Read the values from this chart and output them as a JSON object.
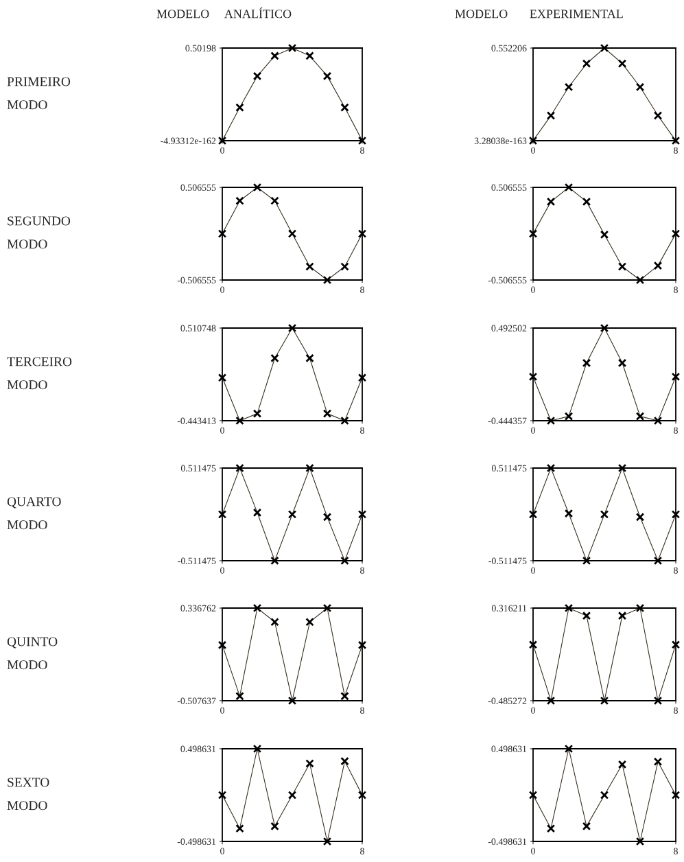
{
  "chart_data": [
    {
      "type": "line",
      "title": "MODELO     ANALÍTICO",
      "ylabel": "PRIMEIRO\nMODO",
      "x": [
        0,
        1,
        2,
        3,
        4,
        5,
        6,
        7,
        8
      ],
      "series": [
        {
          "color": "#3a3020",
          "values": [
            0,
            0.18,
            0.35,
            0.46,
            0.50198,
            0.46,
            0.35,
            0.18,
            0
          ]
        }
      ],
      "xlim": [
        0,
        8
      ],
      "xticks": [
        0,
        8
      ],
      "ylim": [
        -4.93312e-162,
        0.50198
      ],
      "yticks": [
        -4.93312e-162,
        0.50198
      ],
      "marker": "cross",
      "line_style": "solid"
    },
    {
      "type": "line",
      "title": "MODELO       EXPERIMENTAL",
      "x": [
        0,
        1,
        2,
        3,
        4,
        5,
        6,
        7,
        8
      ],
      "series": [
        {
          "color": "#3a3020",
          "values": [
            3.28038e-163,
            0.15,
            0.32,
            0.46,
            0.552206,
            0.46,
            0.32,
            0.15,
            3.28038e-163
          ]
        }
      ],
      "xlim": [
        0,
        8
      ],
      "xticks": [
        0,
        8
      ],
      "ylim": [
        3.28038e-163,
        0.552206
      ],
      "yticks": [
        3.28038e-163,
        0.552206
      ],
      "marker": "cross",
      "line_style": "solid"
    },
    {
      "type": "line",
      "ylabel": "SEGUNDO\nMODO",
      "x": [
        0,
        1,
        2,
        3,
        4,
        5,
        6,
        7,
        8
      ],
      "series": [
        {
          "color": "#3a3020",
          "values": [
            0,
            0.36,
            0.506555,
            0.36,
            0,
            -0.36,
            -0.506555,
            -0.36,
            0
          ]
        }
      ],
      "xlim": [
        0,
        8
      ],
      "xticks": [
        0,
        8
      ],
      "ylim": [
        -0.506555,
        0.506555
      ],
      "yticks": [
        -0.506555,
        0.506555
      ],
      "marker": "cross",
      "line_style": "solid"
    },
    {
      "type": "line",
      "x": [
        0,
        1,
        2,
        3,
        4,
        5,
        6,
        7,
        8
      ],
      "series": [
        {
          "color": "#3a3020",
          "values": [
            0,
            0.35,
            0.506555,
            0.35,
            -0.01,
            -0.36,
            -0.506555,
            -0.35,
            0
          ]
        }
      ],
      "xlim": [
        0,
        8
      ],
      "xticks": [
        0,
        8
      ],
      "ylim": [
        -0.506555,
        0.506555
      ],
      "yticks": [
        -0.506555,
        0.506555
      ],
      "marker": "cross",
      "line_style": "solid"
    },
    {
      "type": "line",
      "ylabel": "TERCEIRO\nMODO",
      "x": [
        0,
        1,
        2,
        3,
        4,
        5,
        6,
        7,
        8
      ],
      "series": [
        {
          "color": "#3a3020",
          "values": [
            0,
            -0.443413,
            -0.37,
            0.2,
            0.510748,
            0.2,
            -0.37,
            -0.443413,
            0
          ]
        }
      ],
      "xlim": [
        0,
        8
      ],
      "xticks": [
        0,
        8
      ],
      "ylim": [
        -0.443413,
        0.510748
      ],
      "yticks": [
        -0.443413,
        0.510748
      ],
      "marker": "cross",
      "line_style": "solid"
    },
    {
      "type": "line",
      "x": [
        0,
        1,
        2,
        3,
        4,
        5,
        6,
        7,
        8
      ],
      "series": [
        {
          "color": "#3a3020",
          "values": [
            0,
            -0.444357,
            -0.4,
            0.14,
            0.492502,
            0.14,
            -0.4,
            -0.444357,
            0
          ]
        }
      ],
      "xlim": [
        0,
        8
      ],
      "xticks": [
        0,
        8
      ],
      "ylim": [
        -0.444357,
        0.492502
      ],
      "yticks": [
        -0.444357,
        0.492502
      ],
      "marker": "cross",
      "line_style": "solid"
    },
    {
      "type": "line",
      "ylabel": "QUARTO\nMODO",
      "x": [
        0,
        1,
        2,
        3,
        4,
        5,
        6,
        7,
        8
      ],
      "series": [
        {
          "color": "#3a3020",
          "values": [
            0,
            0.511475,
            0.02,
            -0.511475,
            0,
            0.511475,
            -0.03,
            -0.511475,
            0
          ]
        }
      ],
      "xlim": [
        0,
        8
      ],
      "xticks": [
        0,
        8
      ],
      "ylim": [
        -0.511475,
        0.511475
      ],
      "yticks": [
        -0.511475,
        0.511475
      ],
      "marker": "cross",
      "line_style": "solid"
    },
    {
      "type": "line",
      "x": [
        0,
        1,
        2,
        3,
        4,
        5,
        6,
        7,
        8
      ],
      "series": [
        {
          "color": "#3a3020",
          "values": [
            0,
            0.511475,
            0.01,
            -0.511475,
            0,
            0.511475,
            -0.03,
            -0.511475,
            0
          ]
        }
      ],
      "xlim": [
        0,
        8
      ],
      "xticks": [
        0,
        8
      ],
      "ylim": [
        -0.511475,
        0.511475
      ],
      "yticks": [
        -0.511475,
        0.511475
      ],
      "marker": "cross",
      "line_style": "solid"
    },
    {
      "type": "line",
      "ylabel": "QUINTO\nMODO",
      "x": [
        0,
        1,
        2,
        3,
        4,
        5,
        6,
        7,
        8
      ],
      "series": [
        {
          "color": "#3a3020",
          "values": [
            0,
            -0.466,
            0.336762,
            0.21,
            -0.507637,
            0.21,
            0.336762,
            -0.466,
            0
          ]
        }
      ],
      "xlim": [
        0,
        8
      ],
      "xticks": [
        0,
        8
      ],
      "ylim": [
        -0.507637,
        0.336762
      ],
      "yticks": [
        -0.507637,
        0.336762
      ],
      "marker": "cross",
      "line_style": "solid"
    },
    {
      "type": "line",
      "x": [
        0,
        1,
        2,
        3,
        4,
        5,
        6,
        7,
        8
      ],
      "series": [
        {
          "color": "#3a3020",
          "values": [
            0,
            -0.485272,
            0.316211,
            0.25,
            -0.485272,
            0.25,
            0.316211,
            -0.485272,
            0
          ]
        }
      ],
      "xlim": [
        0,
        8
      ],
      "xticks": [
        0,
        8
      ],
      "ylim": [
        -0.485272,
        0.316211
      ],
      "yticks": [
        -0.485272,
        0.316211
      ],
      "marker": "cross",
      "line_style": "solid"
    },
    {
      "type": "line",
      "ylabel": "SEXTO\nMODO",
      "x": [
        0,
        1,
        2,
        3,
        4,
        5,
        6,
        7,
        8
      ],
      "series": [
        {
          "color": "#3a3020",
          "values": [
            0,
            -0.36,
            0.498631,
            -0.335,
            0,
            0.34,
            -0.498631,
            0.365,
            0
          ]
        }
      ],
      "xlim": [
        0,
        8
      ],
      "xticks": [
        0,
        8
      ],
      "ylim": [
        -0.498631,
        0.498631
      ],
      "yticks": [
        -0.498631,
        0.498631
      ],
      "marker": "cross",
      "line_style": "solid"
    },
    {
      "type": "line",
      "x": [
        0,
        1,
        2,
        3,
        4,
        5,
        6,
        7,
        8
      ],
      "series": [
        {
          "color": "#3a3020",
          "values": [
            0,
            -0.36,
            0.498631,
            -0.335,
            0,
            0.33,
            -0.498631,
            0.36,
            0
          ]
        }
      ],
      "xlim": [
        0,
        8
      ],
      "xticks": [
        0,
        8
      ],
      "ylim": [
        -0.498631,
        0.498631
      ],
      "yticks": [
        -0.498631,
        0.498631
      ],
      "marker": "cross",
      "line_style": "solid"
    }
  ]
}
